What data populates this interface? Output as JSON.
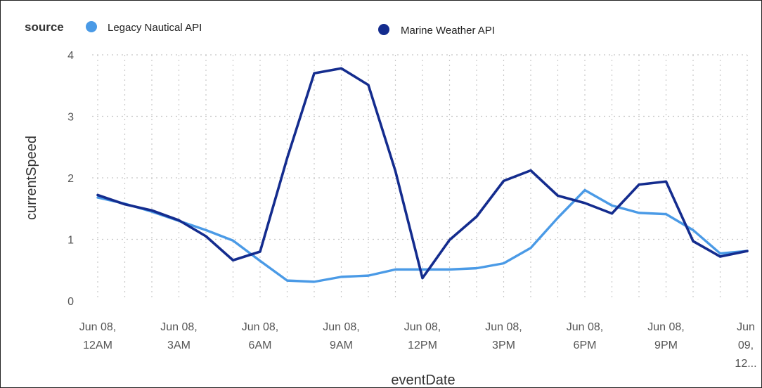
{
  "chart_data": {
    "type": "line",
    "title": "",
    "xlabel": "eventDate",
    "ylabel": "currentSpeed",
    "ylim": [
      0,
      4
    ],
    "y_ticks": [
      "0",
      "1",
      "2",
      "3",
      "4"
    ],
    "x_ticks": [
      {
        "at": 0,
        "lines": [
          "Jun 08,",
          "12AM"
        ]
      },
      {
        "at": 3,
        "lines": [
          "Jun 08,",
          "3AM"
        ]
      },
      {
        "at": 6,
        "lines": [
          "Jun 08,",
          "6AM"
        ]
      },
      {
        "at": 9,
        "lines": [
          "Jun 08,",
          "9AM"
        ]
      },
      {
        "at": 12,
        "lines": [
          "Jun 08,",
          "12PM"
        ]
      },
      {
        "at": 15,
        "lines": [
          "Jun 08,",
          "3PM"
        ]
      },
      {
        "at": 18,
        "lines": [
          "Jun 08,",
          "6PM"
        ]
      },
      {
        "at": 21,
        "lines": [
          "Jun 08,",
          "9PM"
        ]
      },
      {
        "at": 24,
        "lines": [
          "Jun",
          "09,",
          "12..."
        ]
      }
    ],
    "x_hours": [
      0,
      1,
      2,
      3,
      4,
      5,
      6,
      7,
      8,
      9,
      10,
      11,
      12,
      13,
      14,
      15,
      16,
      17,
      18,
      19,
      20,
      21,
      22,
      23,
      24
    ],
    "xlim": [
      0,
      24
    ],
    "grid": true,
    "legend": {
      "title": "source",
      "placement": "top-left"
    },
    "series": [
      {
        "name": "Legacy Nautical API",
        "color": "#4a9ae6",
        "values": [
          1.68,
          1.58,
          1.45,
          1.3,
          1.15,
          0.98,
          0.65,
          0.33,
          0.31,
          0.39,
          0.41,
          0.51,
          0.51,
          0.51,
          0.53,
          0.61,
          0.86,
          1.35,
          1.8,
          1.55,
          1.43,
          1.41,
          1.15,
          0.77,
          0.81
        ]
      },
      {
        "name": "Marine Weather API",
        "color": "#142c8e",
        "values": [
          1.72,
          1.57,
          1.47,
          1.31,
          1.05,
          0.66,
          0.8,
          2.32,
          3.7,
          3.78,
          3.51,
          2.11,
          0.37,
          0.99,
          1.37,
          1.95,
          2.12,
          1.71,
          1.59,
          1.42,
          1.89,
          1.94,
          0.97,
          0.72,
          0.81
        ]
      }
    ]
  }
}
